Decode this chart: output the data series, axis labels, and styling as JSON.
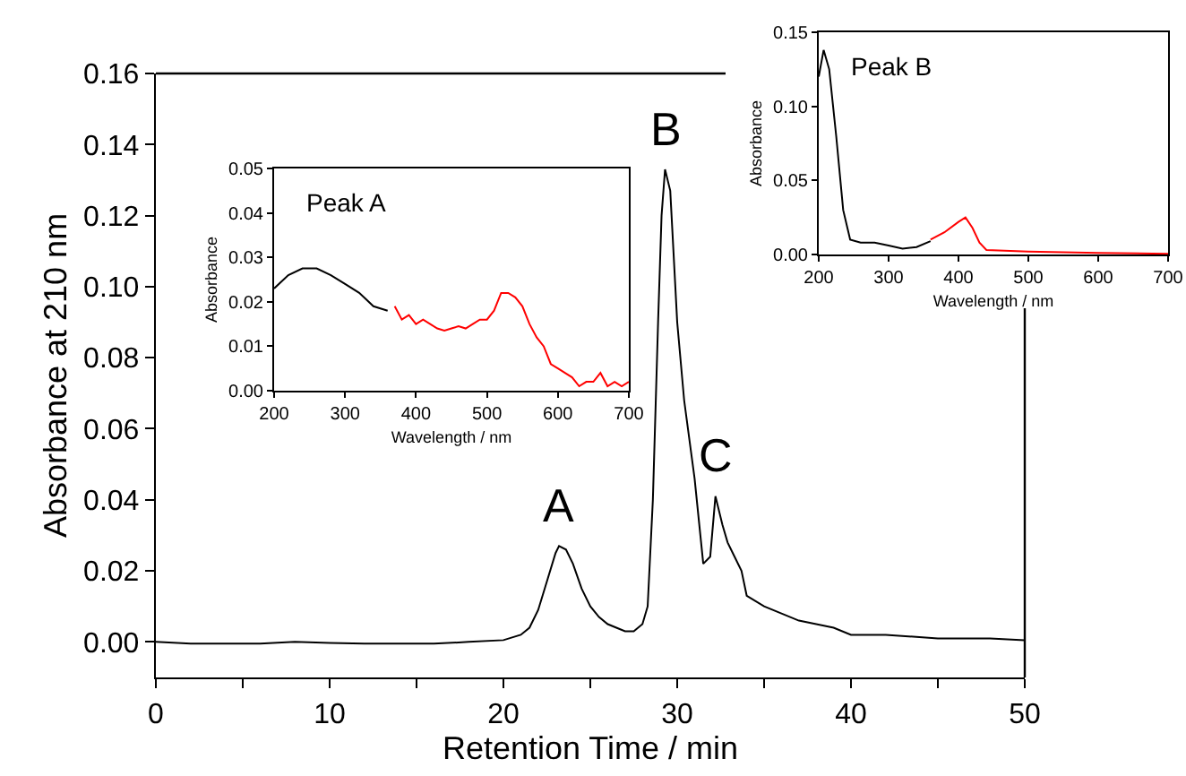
{
  "chart_data": [
    {
      "type": "line",
      "xlabel": "Retention Time / min",
      "ylabel": "Absorbance at 210 nm",
      "xlim": [
        0,
        50
      ],
      "ylim": [
        -0.01,
        0.16
      ],
      "xticks": [
        0,
        {
          "value": 5,
          "label": null
        },
        10,
        {
          "value": 15,
          "label": null
        },
        20,
        {
          "value": 25,
          "label": null
        },
        30,
        {
          "value": 35,
          "label": null
        },
        40,
        {
          "value": 45,
          "label": null
        },
        50
      ],
      "yticks": [
        {
          "value": 0,
          "label": "0.00"
        },
        {
          "value": 0.02,
          "label": "0.02"
        },
        {
          "value": 0.04,
          "label": "0.04"
        },
        {
          "value": 0.06,
          "label": "0.06"
        },
        {
          "value": 0.08,
          "label": "0.08"
        },
        {
          "value": 0.1,
          "label": "0.10"
        },
        {
          "value": 0.12,
          "label": "0.12"
        },
        {
          "value": 0.14,
          "label": "0.14"
        },
        {
          "value": 0.16,
          "label": "0.16"
        }
      ],
      "annotations": [
        {
          "text": "A",
          "x": 23.2,
          "y": 0.027
        },
        {
          "text": "B",
          "x": 29.3,
          "y": 0.133
        },
        {
          "text": "C",
          "x": 32.2,
          "y": 0.041
        }
      ],
      "series": [
        {
          "color": "#000000",
          "x": [
            0,
            2,
            4,
            6,
            8,
            10,
            12,
            14,
            16,
            18,
            20,
            21,
            21.5,
            22,
            22.5,
            23,
            23.2,
            23.6,
            24,
            24.5,
            25,
            25.5,
            26,
            26.5,
            27,
            27.5,
            28,
            28.3,
            28.6,
            28.9,
            29.1,
            29.3,
            29.6,
            30,
            30.4,
            31,
            31.5,
            31.9,
            32.2,
            32.6,
            32.9,
            33.3,
            33.7,
            34,
            35,
            36,
            37,
            38,
            39,
            40,
            42,
            45,
            48,
            50
          ],
          "values": [
            0,
            -0.0005,
            -0.0005,
            -0.0005,
            0,
            -0.0003,
            -0.0005,
            -0.0005,
            -0.0005,
            0,
            0.0005,
            0.002,
            0.004,
            0.009,
            0.017,
            0.025,
            0.027,
            0.026,
            0.022,
            0.015,
            0.01,
            0.007,
            0.005,
            0.004,
            0.003,
            0.003,
            0.005,
            0.01,
            0.04,
            0.09,
            0.12,
            0.133,
            0.127,
            0.09,
            0.068,
            0.046,
            0.022,
            0.024,
            0.041,
            0.033,
            0.028,
            0.024,
            0.02,
            0.013,
            0.01,
            0.008,
            0.006,
            0.005,
            0.004,
            0.002,
            0.002,
            0.001,
            0.001,
            0.0005
          ]
        }
      ]
    },
    {
      "type": "line",
      "title": "Peak A",
      "xlabel": "Wavelength / nm",
      "ylabel": "Absorbance",
      "xlim": [
        200,
        700
      ],
      "ylim": [
        0,
        0.05
      ],
      "xticks": [
        200,
        300,
        400,
        500,
        600,
        700
      ],
      "yticks": [
        {
          "value": 0,
          "label": "0.00"
        },
        {
          "value": 0.01,
          "label": "0.01"
        },
        {
          "value": 0.02,
          "label": "0.02"
        },
        {
          "value": 0.03,
          "label": "0.03"
        },
        {
          "value": 0.04,
          "label": "0.04"
        },
        {
          "value": 0.05,
          "label": "0.05"
        }
      ],
      "series": [
        {
          "color": "#000000",
          "x": [
            200,
            220,
            240,
            260,
            280,
            300,
            320,
            340,
            360
          ],
          "values": [
            0.023,
            0.026,
            0.0275,
            0.0275,
            0.026,
            0.024,
            0.022,
            0.019,
            0.018
          ]
        },
        {
          "color": "#ff0000",
          "x": [
            370,
            380,
            390,
            400,
            410,
            420,
            430,
            440,
            450,
            460,
            470,
            480,
            490,
            500,
            510,
            520,
            530,
            540,
            550,
            560,
            570,
            580,
            590,
            600,
            610,
            620,
            630,
            640,
            650,
            660,
            670,
            680,
            690,
            700
          ],
          "values": [
            0.019,
            0.016,
            0.017,
            0.015,
            0.016,
            0.015,
            0.014,
            0.0135,
            0.014,
            0.0145,
            0.014,
            0.015,
            0.016,
            0.016,
            0.018,
            0.022,
            0.022,
            0.021,
            0.019,
            0.015,
            0.012,
            0.01,
            0.006,
            0.005,
            0.004,
            0.003,
            0.001,
            0.002,
            0.002,
            0.004,
            0.001,
            0.002,
            0.001,
            0.002
          ]
        }
      ]
    },
    {
      "type": "line",
      "title": "Peak B",
      "xlabel": "Wavelength / nm",
      "ylabel": "Absorbance",
      "xlim": [
        200,
        700
      ],
      "ylim": [
        0,
        0.15
      ],
      "xticks": [
        200,
        300,
        400,
        500,
        600,
        700
      ],
      "yticks": [
        {
          "value": 0,
          "label": "0.00"
        },
        {
          "value": 0.05,
          "label": "0.05"
        },
        {
          "value": 0.1,
          "label": "0.10"
        },
        {
          "value": 0.15,
          "label": "0.15"
        }
      ],
      "series": [
        {
          "color": "#000000",
          "x": [
            200,
            207,
            215,
            225,
            235,
            245,
            260,
            280,
            300,
            320,
            340,
            360
          ],
          "values": [
            0.12,
            0.138,
            0.125,
            0.08,
            0.03,
            0.01,
            0.008,
            0.008,
            0.006,
            0.004,
            0.005,
            0.009
          ]
        },
        {
          "color": "#ff0000",
          "x": [
            360,
            380,
            400,
            410,
            420,
            430,
            440,
            500,
            600,
            700
          ],
          "values": [
            0.01,
            0.015,
            0.022,
            0.025,
            0.018,
            0.008,
            0.003,
            0.002,
            0.001,
            0.0005
          ]
        }
      ]
    }
  ]
}
